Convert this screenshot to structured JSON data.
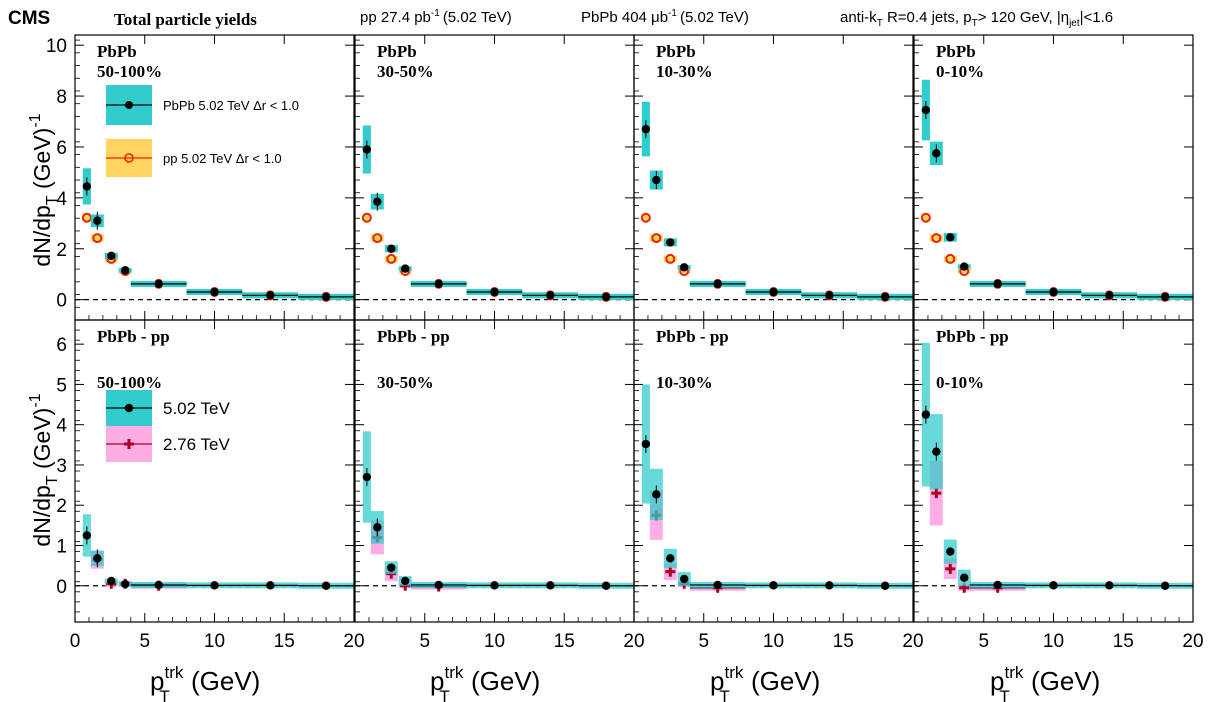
{
  "header": {
    "brand": "CMS",
    "title": "Total particle yields",
    "pp_lumi": "pp 27.4 pb",
    "pp_lumi_sup": "-1",
    "pp_energy": "(5.02 TeV)",
    "pbpb_lumi": "PbPb 404 μb",
    "pbpb_lumi_sup": "-1",
    "pbpb_energy": "(5.02 TeV)",
    "cuts_a": "anti-k",
    "cuts_a_sub": "T",
    "cuts_b": " R=0.4 jets, p",
    "cuts_b_sub": "T",
    "cuts_c": "> 120 GeV, |η",
    "cuts_c_sub": "jet",
    "cuts_d": "|<1.6"
  },
  "axes": {
    "xlabel_main": "p",
    "xlabel_sup": "trk",
    "xlabel_sub": "T",
    "xlabel_unit": " (GeV)",
    "ylabel_main": "dN/dp",
    "ylabel_sub": "T",
    "ylabel_unit": " (GeV)",
    "ylabel_sup": "-1"
  },
  "legend_top": {
    "pbpb": "PbPb 5.02 TeV Δr < 1.0",
    "pp": "pp 5.02 TeV Δr < 1.0"
  },
  "legend_bottom": {
    "e502": "5.02 TeV",
    "e276": "2.76 TeV"
  },
  "colors": {
    "teal": "#33cccc",
    "yellow": "#ffcc44",
    "pink": "#ff99dd",
    "open_marker": "#ee2200",
    "cross_marker": "#aa0022"
  },
  "chart_data": {
    "type": "scatter",
    "xlim": [
      0,
      20
    ],
    "x_ticks": [
      "0",
      "5",
      "10",
      "15",
      "20"
    ],
    "bins": [
      [
        0.7,
        1
      ],
      [
        1,
        2
      ],
      [
        2,
        3
      ],
      [
        3,
        4
      ],
      [
        4,
        8
      ],
      [
        8,
        12
      ],
      [
        12,
        16
      ],
      [
        16,
        20
      ]
    ],
    "x_centers": [
      0.85,
      1.6,
      2.6,
      3.6,
      6.0,
      10.0,
      14.0,
      18.0
    ],
    "top_row": {
      "ylim": [
        -0.8,
        10.4
      ],
      "y_ticks": [
        "0",
        "2",
        "4",
        "6",
        "8",
        "10"
      ],
      "centrality": [
        "50-100%",
        "30-50%",
        "10-30%",
        "0-10%"
      ],
      "label": "PbPb",
      "pbpb_502": [
        [
          4.45,
          3.1,
          1.72,
          1.15,
          0.62,
          0.3,
          0.17,
          0.11
        ],
        [
          5.9,
          3.85,
          2.0,
          1.22,
          0.62,
          0.3,
          0.17,
          0.11
        ],
        [
          6.7,
          4.7,
          2.25,
          1.27,
          0.62,
          0.3,
          0.17,
          0.11
        ],
        [
          7.45,
          5.75,
          2.45,
          1.3,
          0.62,
          0.3,
          0.17,
          0.11
        ]
      ],
      "pp_502": [
        3.22,
        2.42,
        1.6,
        1.12,
        0.62,
        0.3,
        0.17,
        0.11
      ]
    },
    "bottom_row": {
      "ylim": [
        -0.9,
        6.6
      ],
      "y_ticks": [
        "0",
        "1",
        "2",
        "3",
        "4",
        "5",
        "6"
      ],
      "centrality": [
        "50-100%",
        "30-50%",
        "10-30%",
        "0-10%"
      ],
      "label": "PbPb - pp",
      "diff_502": [
        [
          1.25,
          0.68,
          0.12,
          0.04,
          0.02,
          0.01,
          0.01,
          0.0
        ],
        [
          2.7,
          1.45,
          0.45,
          0.12,
          0.02,
          0.01,
          0.01,
          0.0
        ],
        [
          3.52,
          2.27,
          0.68,
          0.17,
          0.02,
          0.01,
          0.01,
          0.0
        ],
        [
          4.25,
          3.33,
          0.85,
          0.2,
          0.02,
          0.01,
          0.01,
          0.0
        ]
      ],
      "diff_276": [
        [
          null,
          0.65,
          0.05,
          0.05,
          0.0
        ],
        [
          null,
          1.2,
          0.3,
          0.0,
          -0.02
        ],
        [
          null,
          1.75,
          0.35,
          0.05,
          -0.05
        ],
        [
          null,
          2.3,
          0.42,
          -0.05,
          -0.05
        ]
      ]
    }
  }
}
